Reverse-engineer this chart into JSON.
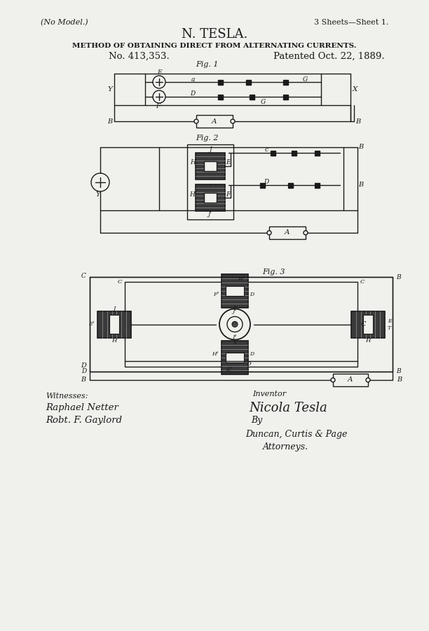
{
  "bg_color": "#f0f0ec",
  "line_color": "#1a1a1a",
  "title_line1": "N. TESLA.",
  "title_line2": "METHOD OF OBTAINING DIRECT FROM ALTERNATING CURRENTS.",
  "title_line3": "No. 413,353.",
  "title_line4": "Patented Oct. 22, 1889.",
  "header_left": "(No Model.)",
  "header_right": "3 Sheets—Sheet 1.",
  "fig1_label": "Fig. 1",
  "fig2_label": "Fig. 2",
  "fig3_label": "Fig. 3"
}
